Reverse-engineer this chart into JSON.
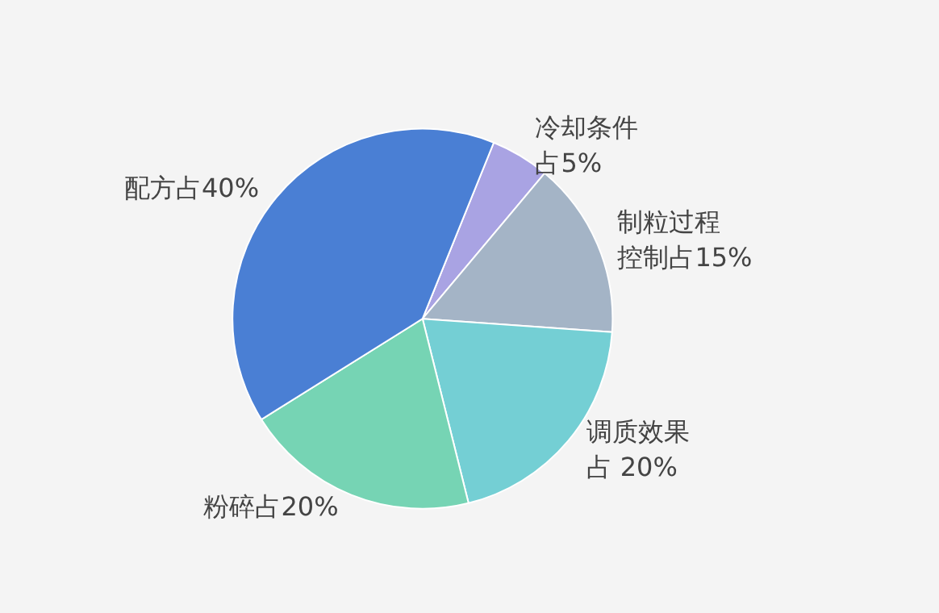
{
  "chart_data": {
    "type": "pie",
    "categories": [
      "冷却条件",
      "制粒过程控制",
      "调质效果",
      "粉碎",
      "配方"
    ],
    "values": [
      5,
      15,
      20,
      20,
      40
    ],
    "value_labels": [
      "占5%",
      "占15%",
      "占 20%",
      "占20%",
      "占40%"
    ],
    "colors": [
      "#a9a3e3",
      "#a4b4c6",
      "#74cfd4",
      "#76d4b4",
      "#4a7fd4"
    ]
  }
}
